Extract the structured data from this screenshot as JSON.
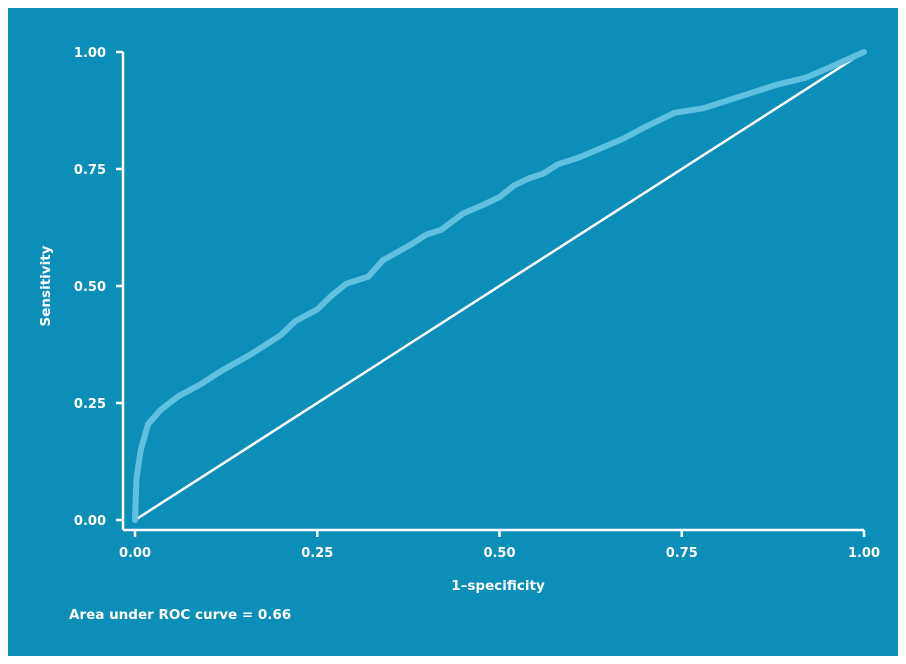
{
  "chart_data": {
    "type": "line",
    "title": "",
    "xlabel": "1–specificity",
    "ylabel": "Sensitivity",
    "xlim": [
      0,
      1
    ],
    "ylim": [
      0,
      1
    ],
    "grid": false,
    "x_ticks": [
      "0.00",
      "0.25",
      "0.50",
      "0.75",
      "1.00"
    ],
    "y_ticks": [
      "0.00",
      "0.25",
      "0.50",
      "0.75",
      "1.00"
    ],
    "series": [
      {
        "color": "#5fc1df",
        "points": [
          [
            0.0,
            0.0
          ],
          [
            0.002,
            0.09
          ],
          [
            0.008,
            0.15
          ],
          [
            0.018,
            0.205
          ],
          [
            0.035,
            0.235
          ],
          [
            0.06,
            0.265
          ],
          [
            0.09,
            0.29
          ],
          [
            0.12,
            0.32
          ],
          [
            0.16,
            0.355
          ],
          [
            0.2,
            0.395
          ],
          [
            0.22,
            0.425
          ],
          [
            0.25,
            0.45
          ],
          [
            0.27,
            0.48
          ],
          [
            0.29,
            0.505
          ],
          [
            0.32,
            0.52
          ],
          [
            0.34,
            0.555
          ],
          [
            0.38,
            0.59
          ],
          [
            0.4,
            0.61
          ],
          [
            0.42,
            0.62
          ],
          [
            0.45,
            0.655
          ],
          [
            0.48,
            0.675
          ],
          [
            0.5,
            0.69
          ],
          [
            0.52,
            0.715
          ],
          [
            0.54,
            0.73
          ],
          [
            0.56,
            0.74
          ],
          [
            0.58,
            0.76
          ],
          [
            0.61,
            0.775
          ],
          [
            0.64,
            0.795
          ],
          [
            0.67,
            0.815
          ],
          [
            0.7,
            0.84
          ],
          [
            0.74,
            0.87
          ],
          [
            0.78,
            0.88
          ],
          [
            0.82,
            0.9
          ],
          [
            0.85,
            0.915
          ],
          [
            0.88,
            0.93
          ],
          [
            0.92,
            0.945
          ],
          [
            0.95,
            0.965
          ],
          [
            1.0,
            1.0
          ]
        ]
      },
      {
        "color": "#ffffff",
        "points": [
          [
            0,
            0
          ],
          [
            1,
            1
          ]
        ]
      }
    ],
    "annotation": "Area under ROC curve = 0.66"
  },
  "colors": {
    "background": "#0b8fb8",
    "axis": "#ffffff",
    "roc_curve": "#5fc1df",
    "reference_line": "#ffffff"
  }
}
